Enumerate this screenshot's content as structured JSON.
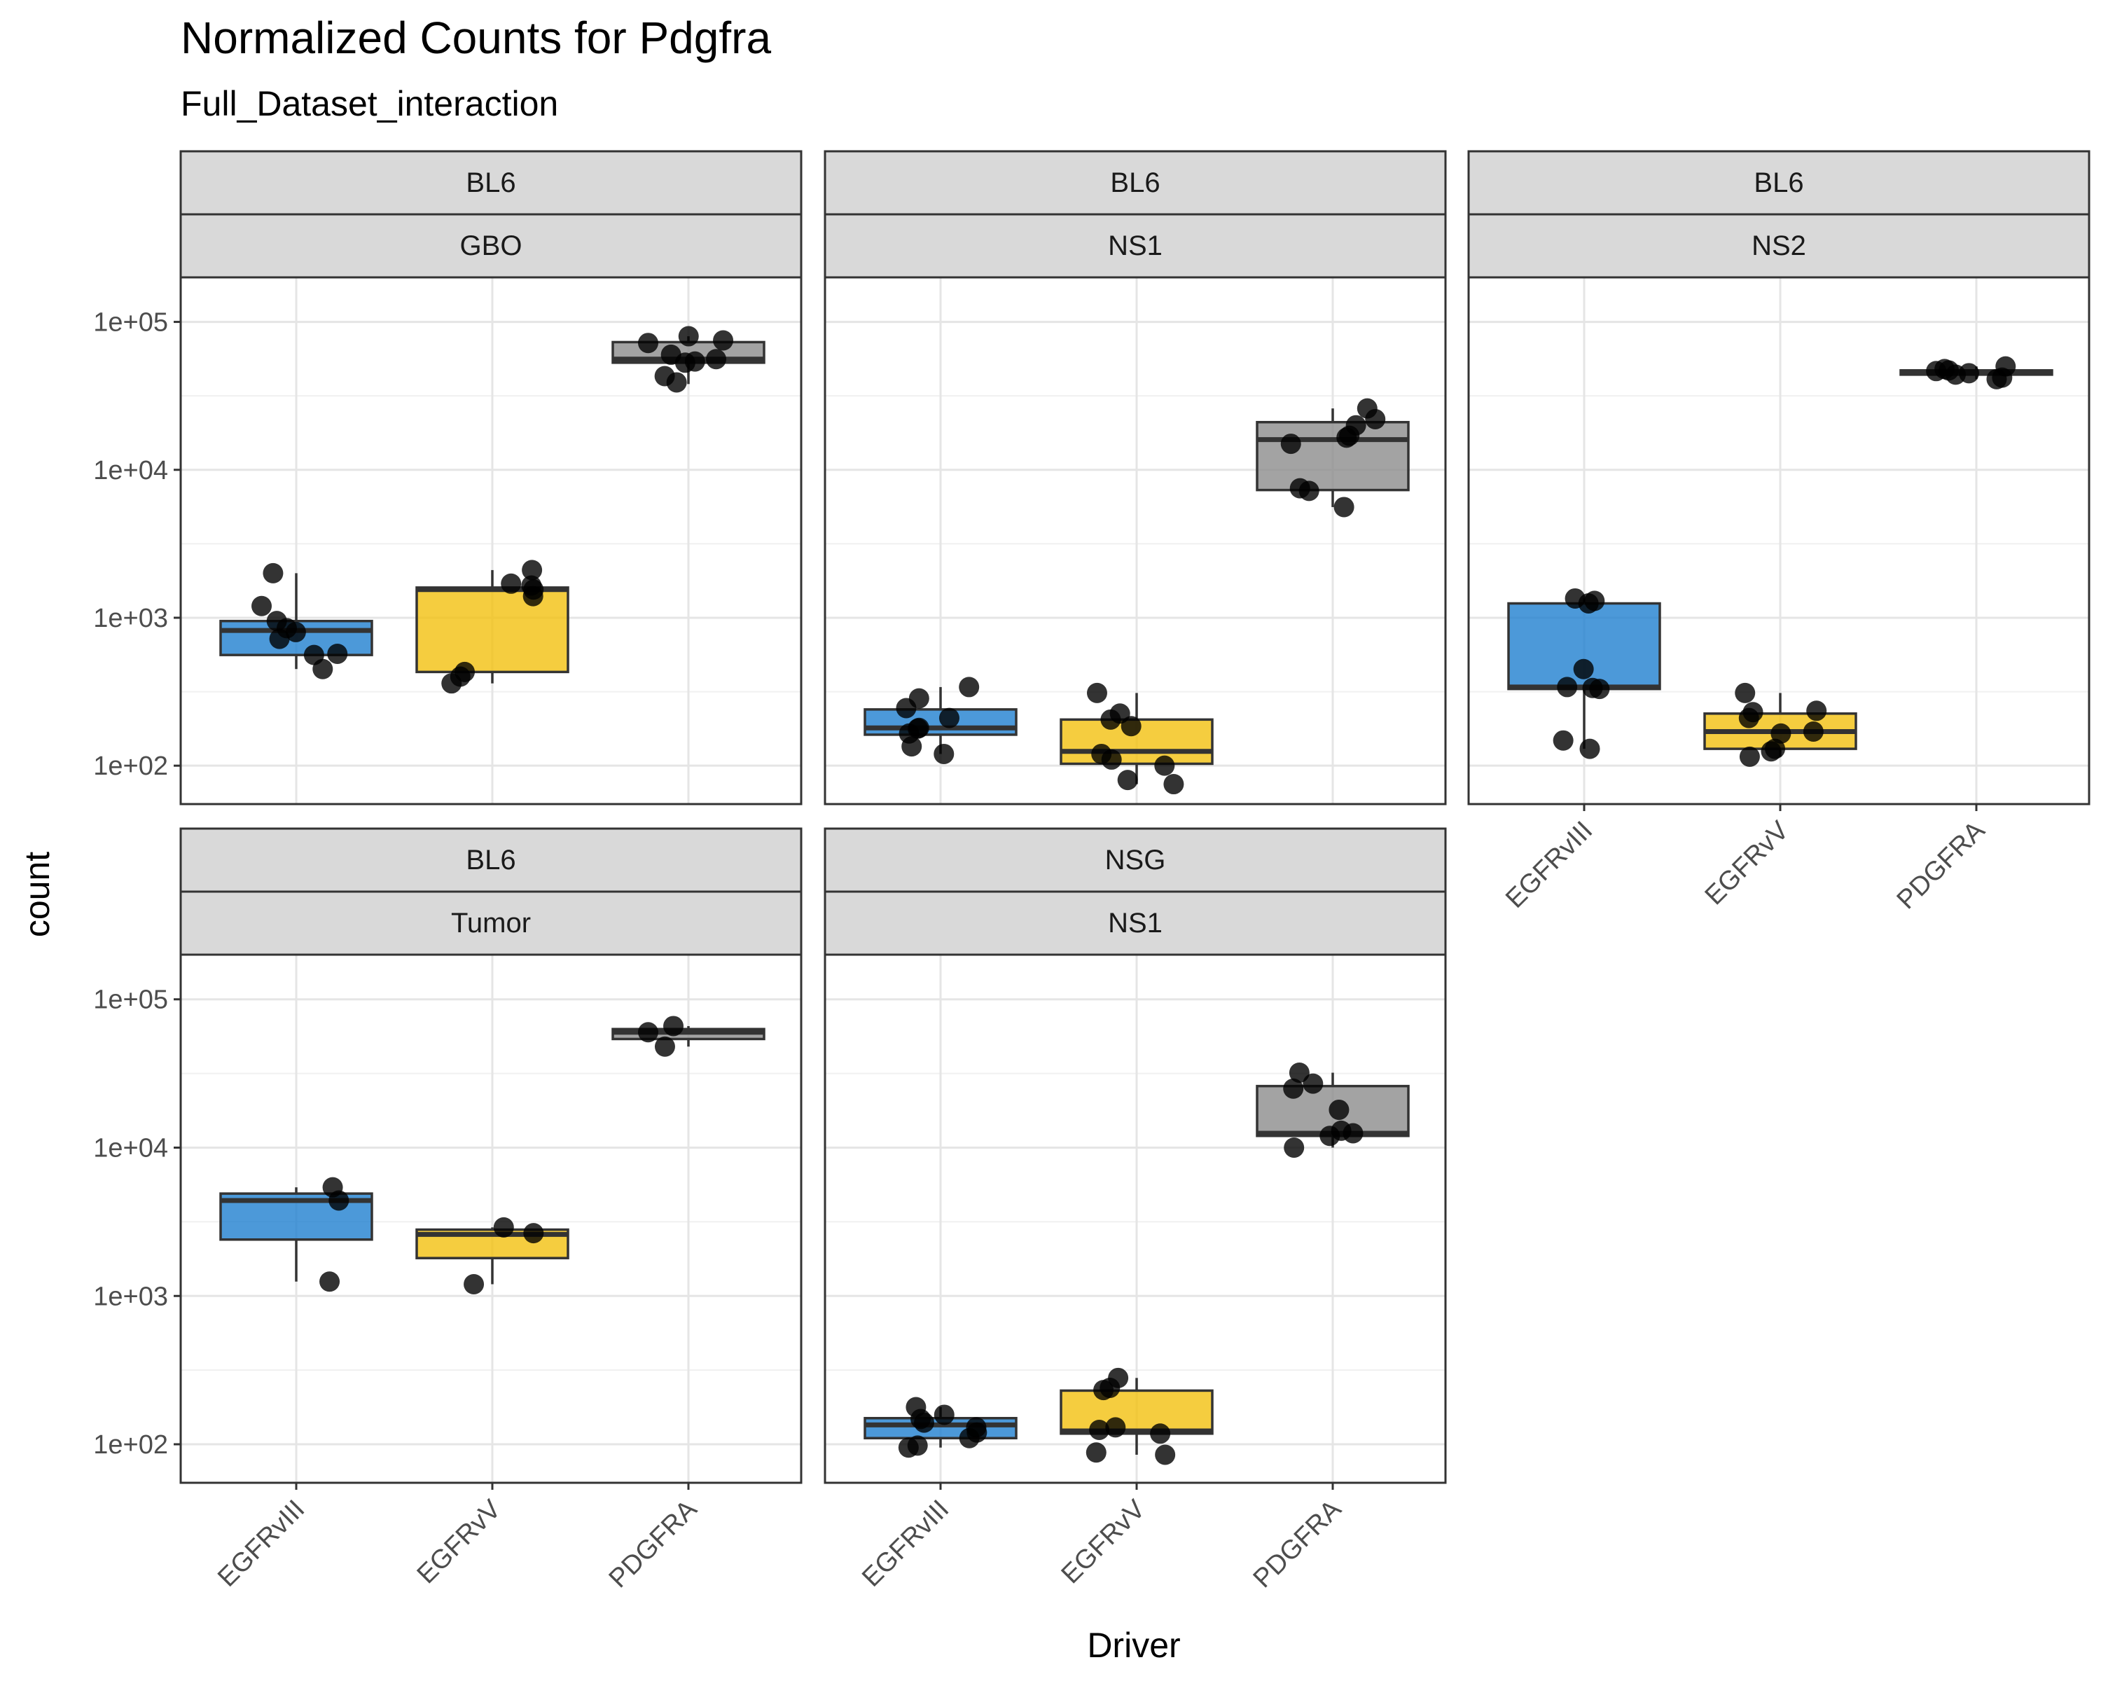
{
  "chart_data": {
    "type": "box",
    "title": "Normalized Counts for Pdgfra",
    "subtitle": "Full_Dataset_interaction",
    "xlabel": "Driver",
    "ylabel": "count",
    "y_scale": "log10",
    "ylim": [
      55,
      200000
    ],
    "y_ticks": [
      100,
      1000,
      10000,
      100000
    ],
    "y_tick_labels": [
      "1e+02",
      "1e+03",
      "1e+04",
      "1e+05"
    ],
    "categories": [
      "EGFRvIII",
      "EGFRvV",
      "PDGFRA"
    ],
    "colors": {
      "EGFRvIII": "#1f7fd0",
      "EGFRvV": "#f2c00f",
      "PDGFRA": "#8c8c8c"
    },
    "panels": [
      {
        "strain": "BL6",
        "sample": "GBO",
        "boxes": [
          {
            "driver": "EGFRvIII",
            "q1": 560,
            "median": 820,
            "q3": 950,
            "whisker_low": 450,
            "whisker_high": 2000,
            "points": [
              2000,
              1200,
              950,
              850,
              800,
              720,
              570,
              560,
              450
            ]
          },
          {
            "driver": "EGFRvV",
            "q1": 430,
            "median": 1550,
            "q3": 1600,
            "whisker_low": 360,
            "whisker_high": 2100,
            "points": [
              2100,
              1700,
              1650,
              1550,
              1400,
              430,
              400,
              360
            ]
          },
          {
            "driver": "PDGFRA",
            "q1": 53000,
            "median": 56000,
            "q3": 73000,
            "whisker_low": 38000,
            "whisker_high": 80000,
            "points": [
              80000,
              75000,
              72000,
              60000,
              56000,
              54000,
              53000,
              43000,
              39000
            ]
          }
        ]
      },
      {
        "strain": "BL6",
        "sample": "NS1",
        "boxes": [
          {
            "driver": "EGFRvIII",
            "q1": 162,
            "median": 180,
            "q3": 240,
            "whisker_low": 120,
            "whisker_high": 340,
            "points": [
              340,
              285,
              245,
              210,
              180,
              178,
              165,
              135,
              120
            ]
          },
          {
            "driver": "EGFRvV",
            "q1": 103,
            "median": 125,
            "q3": 205,
            "whisker_low": 75,
            "whisker_high": 310,
            "points": [
              310,
              225,
              205,
              185,
              120,
              110,
              100,
              80,
              75
            ]
          },
          {
            "driver": "PDGFRA",
            "q1": 7300,
            "median": 16000,
            "q3": 21000,
            "whisker_low": 5600,
            "whisker_high": 26000,
            "points": [
              26000,
              22000,
              20000,
              17000,
              16500,
              15000,
              7500,
              7200,
              5600
            ]
          }
        ]
      },
      {
        "strain": "BL6",
        "sample": "NS2",
        "boxes": [
          {
            "driver": "EGFRvIII",
            "q1": 330,
            "median": 340,
            "q3": 1250,
            "whisker_low": 130,
            "whisker_high": 1350,
            "points": [
              1350,
              1300,
              1250,
              450,
              340,
              335,
              330,
              148,
              130
            ]
          },
          {
            "driver": "EGFRvV",
            "q1": 130,
            "median": 170,
            "q3": 225,
            "whisker_low": 115,
            "whisker_high": 310,
            "points": [
              310,
              235,
              230,
              210,
              170,
              165,
              130,
              125,
              115
            ]
          },
          {
            "driver": "PDGFRA",
            "q1": 44000,
            "median": 46000,
            "q3": 47000,
            "whisker_low": 41000,
            "whisker_high": 50000,
            "points": [
              50000,
              48000,
              47000,
              46500,
              45000,
              44000,
              42000,
              41000
            ]
          }
        ]
      },
      {
        "strain": "BL6",
        "sample": "Tumor",
        "boxes": [
          {
            "driver": "EGFRvIII",
            "q1": 2400,
            "median": 4400,
            "q3": 4900,
            "whisker_low": 1250,
            "whisker_high": 5400,
            "points": [
              5400,
              4400,
              1250
            ]
          },
          {
            "driver": "EGFRvV",
            "q1": 1800,
            "median": 2600,
            "q3": 2800,
            "whisker_low": 1200,
            "whisker_high": 2900,
            "points": [
              2900,
              2650,
              1200
            ]
          },
          {
            "driver": "PDGFRA",
            "q1": 54000,
            "median": 60000,
            "q3": 63000,
            "whisker_low": 48000,
            "whisker_high": 66000,
            "points": [
              66000,
              60000,
              48000
            ]
          }
        ]
      },
      {
        "strain": "NSG",
        "sample": "NS1",
        "boxes": [
          {
            "driver": "EGFRvIII",
            "q1": 110,
            "median": 135,
            "q3": 150,
            "whisker_low": 95,
            "whisker_high": 178,
            "points": [
              178,
              158,
              148,
              140,
              130,
              120,
              110,
              98,
              95
            ]
          },
          {
            "driver": "EGFRvV",
            "q1": 118,
            "median": 123,
            "q3": 230,
            "whisker_low": 85,
            "whisker_high": 280,
            "points": [
              280,
              240,
              232,
              130,
              125,
              118,
              88,
              85
            ]
          },
          {
            "driver": "PDGFRA",
            "q1": 12000,
            "median": 12500,
            "q3": 26000,
            "whisker_low": 10000,
            "whisker_high": 32000,
            "points": [
              32000,
              27000,
              25000,
              18000,
              13000,
              12500,
              12000,
              10000
            ]
          }
        ]
      }
    ]
  }
}
